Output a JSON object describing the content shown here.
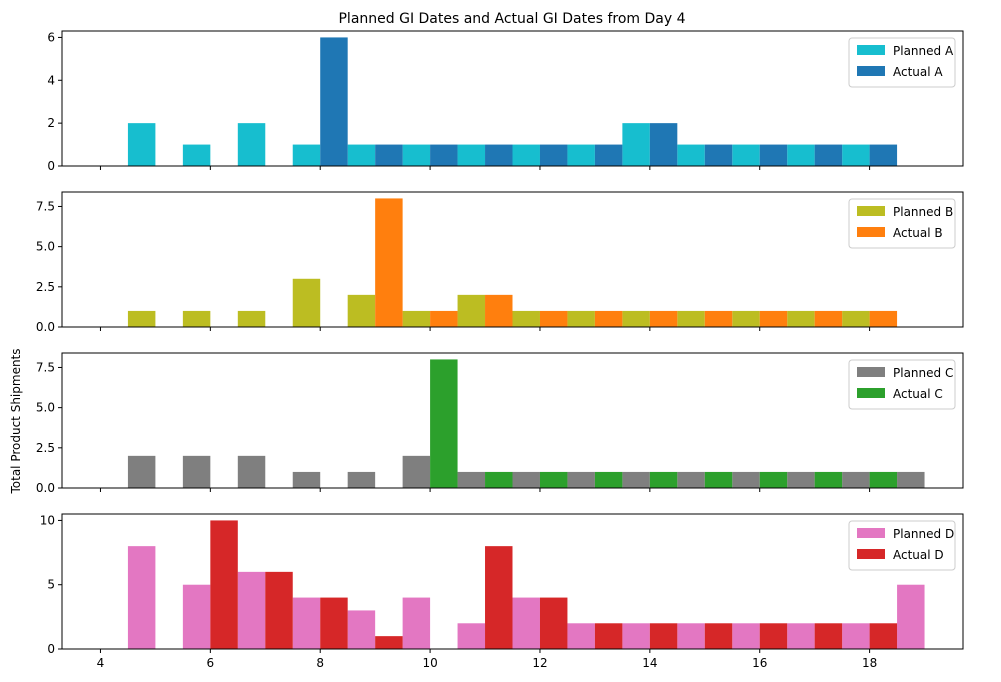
{
  "chart_data": {
    "type": "bar",
    "title": "Planned GI Dates and Actual GI Dates from Day 4",
    "ylabel": "Total Product Shipments",
    "xlabel": "",
    "xlim": [
      3.3,
      19.7
    ],
    "x_ticks": [
      4,
      6,
      8,
      10,
      12,
      14,
      16,
      18
    ],
    "x_tick_labels": [
      "4",
      "6",
      "8",
      "10",
      "12",
      "14",
      "16",
      "18"
    ],
    "bar_width": 0.5,
    "panels": [
      {
        "ylim": [
          0,
          6.3
        ],
        "y_ticks": [
          0,
          2,
          4,
          6
        ],
        "y_tick_labels": [
          "0",
          "2",
          "4",
          "6"
        ],
        "legend": "top-right",
        "series": [
          {
            "name": "Planned A",
            "color": "#17becf",
            "x": [
              4.75,
              5.75,
              6.75,
              7.75,
              8.75,
              9.75,
              10.75,
              11.75,
              12.75,
              13.75,
              14.75,
              15.75,
              16.75,
              17.75
            ],
            "values": [
              2,
              1,
              2,
              1,
              1,
              1,
              1,
              1,
              1,
              2,
              1,
              1,
              1,
              1
            ]
          },
          {
            "name": "Actual A",
            "color": "#1f77b4",
            "x": [
              8.25,
              9.25,
              10.25,
              11.25,
              12.25,
              13.25,
              14.25,
              15.25,
              16.25,
              17.25,
              18.25
            ],
            "values": [
              6,
              1,
              1,
              1,
              1,
              1,
              2,
              1,
              1,
              1,
              1
            ]
          }
        ]
      },
      {
        "ylim": [
          0,
          8.4
        ],
        "y_ticks": [
          0,
          2.5,
          5,
          7.5
        ],
        "y_tick_labels": [
          "0.0",
          "2.5",
          "5.0",
          "7.5"
        ],
        "legend": "top-right",
        "series": [
          {
            "name": "Planned B",
            "color": "#bcbd22",
            "x": [
              4.75,
              5.75,
              6.75,
              7.75,
              8.75,
              9.75,
              10.75,
              11.75,
              12.75,
              13.75,
              14.75,
              15.75,
              16.75,
              17.75
            ],
            "values": [
              1,
              1,
              1,
              3,
              2,
              1,
              2,
              1,
              1,
              1,
              1,
              1,
              1,
              1
            ]
          },
          {
            "name": "Actual B",
            "color": "#ff7f0e",
            "x": [
              9.25,
              10.25,
              11.25,
              12.25,
              13.25,
              14.25,
              15.25,
              16.25,
              17.25,
              18.25
            ],
            "values": [
              8,
              1,
              2,
              1,
              1,
              1,
              1,
              1,
              1,
              1
            ]
          }
        ]
      },
      {
        "ylim": [
          0,
          8.4
        ],
        "y_ticks": [
          0,
          2.5,
          5,
          7.5
        ],
        "y_tick_labels": [
          "0.0",
          "2.5",
          "5.0",
          "7.5"
        ],
        "legend": "top-right",
        "series": [
          {
            "name": "Planned C",
            "color": "#7f7f7f",
            "x": [
              4.75,
              5.75,
              6.75,
              7.75,
              8.75,
              9.75,
              10.75,
              11.75,
              12.75,
              13.75,
              14.75,
              15.75,
              16.75,
              17.75,
              18.75
            ],
            "values": [
              2,
              2,
              2,
              1,
              1,
              2,
              1,
              1,
              1,
              1,
              1,
              1,
              1,
              1,
              1
            ]
          },
          {
            "name": "Actual C",
            "color": "#2ca02c",
            "x": [
              10.25,
              11.25,
              12.25,
              13.25,
              14.25,
              15.25,
              16.25,
              17.25,
              18.25
            ],
            "values": [
              8,
              1,
              1,
              1,
              1,
              1,
              1,
              1,
              1
            ]
          }
        ]
      },
      {
        "ylim": [
          0,
          10.5
        ],
        "y_ticks": [
          0,
          5,
          10
        ],
        "y_tick_labels": [
          "0",
          "5",
          "10"
        ],
        "legend": "top-right",
        "series": [
          {
            "name": "Planned D",
            "color": "#e377c2",
            "x": [
              4.75,
              5.75,
              6.75,
              7.75,
              8.75,
              9.75,
              10.75,
              11.75,
              12.75,
              13.75,
              14.75,
              15.75,
              16.75,
              17.75,
              18.75
            ],
            "values": [
              8,
              5,
              6,
              4,
              3,
              4,
              2,
              4,
              2,
              2,
              2,
              2,
              2,
              2,
              5
            ]
          },
          {
            "name": "Actual D",
            "color": "#d62728",
            "x": [
              6.25,
              7.25,
              8.25,
              9.25,
              11.25,
              12.25,
              13.25,
              14.25,
              15.25,
              16.25,
              17.25,
              18.25
            ],
            "values": [
              10,
              6,
              4,
              1,
              8,
              4,
              2,
              2,
              2,
              2,
              2,
              2
            ]
          }
        ]
      }
    ]
  }
}
